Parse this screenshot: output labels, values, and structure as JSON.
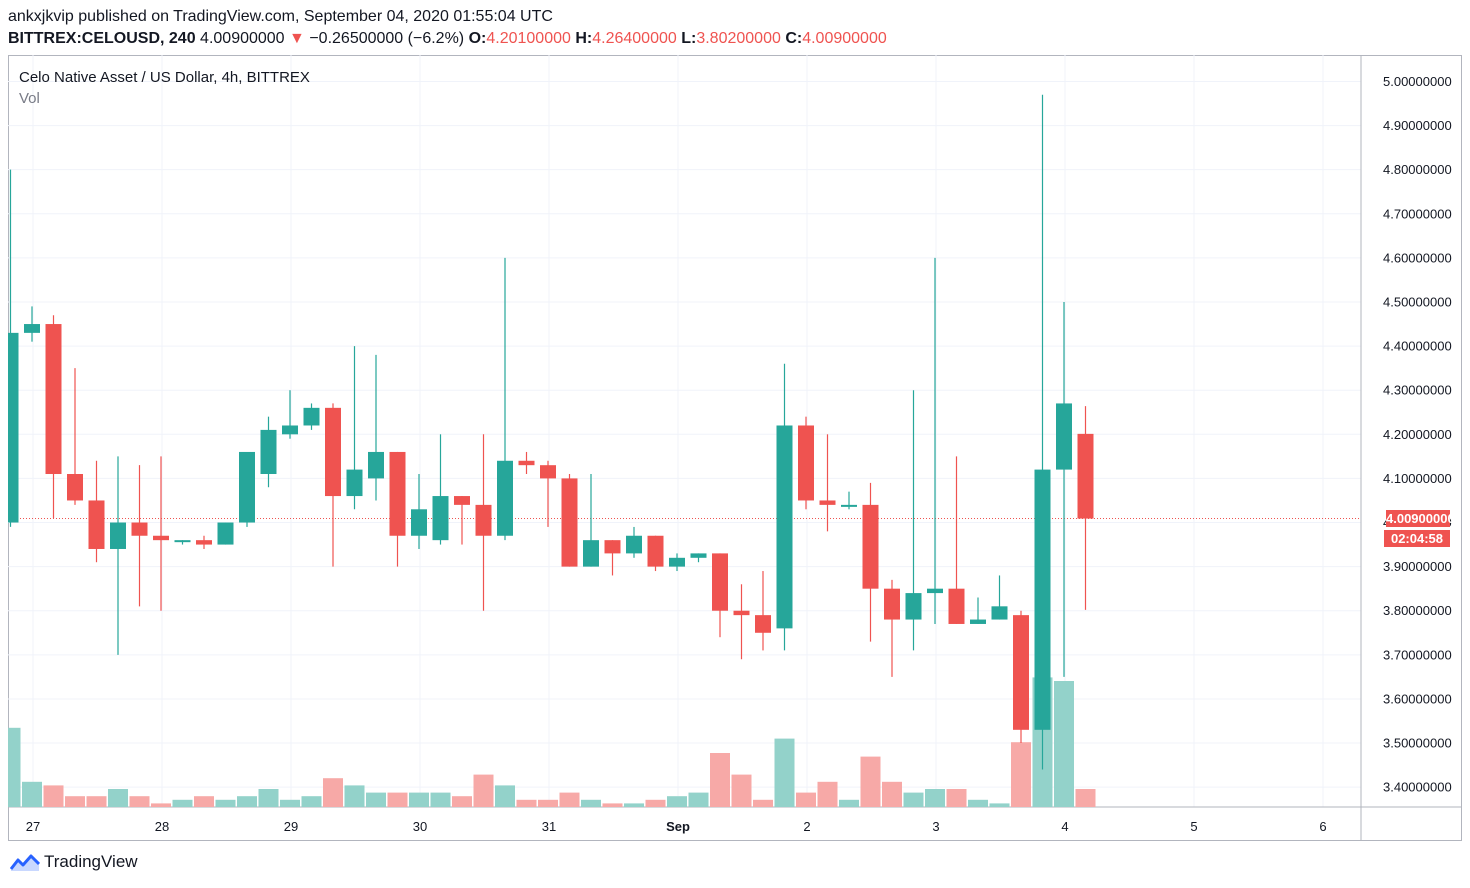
{
  "header": {
    "line1": "ankxjkvip published on TradingView.com, September 04, 2020 01:55:04 UTC",
    "symbol": "BITTREX:CELOUSD, 240",
    "last": "4.00900000",
    "change_arrow": "▼",
    "change": "−0.26500000 (−6.2%)",
    "o_label": "O:",
    "o": "4.20100000",
    "h_label": "H:",
    "h": "4.26400000",
    "l_label": "L:",
    "l": "3.80200000",
    "c_label": "C:",
    "c": "4.00900000"
  },
  "legend": {
    "title": "Celo Native Asset / US Dollar, 4h, BITTREX",
    "vol": "Vol"
  },
  "price_tag": {
    "price": "4.00900000",
    "countdown": "02:04:58"
  },
  "footer": {
    "brand": "TradingView",
    "logo_icon": "tradingview-logo-icon"
  },
  "colors": {
    "up": "#26a69a",
    "down": "#ef5350",
    "up_vol": "#93d2ca",
    "down_vol": "#f7a9a7",
    "grid": "#f0f3fa"
  },
  "chart_data": {
    "type": "candlestick",
    "y_ticks": [
      "3.40000000",
      "3.50000000",
      "3.60000000",
      "3.70000000",
      "3.80000000",
      "3.90000000",
      "4.00000000",
      "4.10000000",
      "4.20000000",
      "4.30000000",
      "4.40000000",
      "4.50000000",
      "4.60000000",
      "4.70000000",
      "4.80000000",
      "4.90000000",
      "5.00000000"
    ],
    "x_ticks": [
      "27",
      "28",
      "29",
      "30",
      "31",
      "Sep",
      "2",
      "3",
      "4",
      "5",
      "6"
    ],
    "x_tick_index": [
      1,
      7,
      13,
      19,
      25,
      31,
      37,
      43,
      49,
      55,
      61
    ],
    "ylim": [
      3.355,
      5.06
    ],
    "ohlc": [
      [
        4.0,
        4.8,
        3.99,
        4.43
      ],
      [
        4.43,
        4.49,
        4.41,
        4.45
      ],
      [
        4.45,
        4.47,
        4.01,
        4.11
      ],
      [
        4.11,
        4.35,
        4.04,
        4.05
      ],
      [
        4.05,
        4.14,
        3.91,
        3.94
      ],
      [
        3.94,
        4.15,
        3.7,
        4.0
      ],
      [
        4.0,
        4.13,
        3.81,
        3.97
      ],
      [
        3.97,
        4.15,
        3.8,
        3.96
      ],
      [
        3.96,
        3.96,
        3.95,
        3.96
      ],
      [
        3.96,
        3.97,
        3.94,
        3.95
      ],
      [
        3.95,
        4.0,
        3.95,
        4.0
      ],
      [
        4.0,
        4.15,
        3.99,
        4.16
      ],
      [
        4.11,
        4.24,
        4.08,
        4.21
      ],
      [
        4.2,
        4.3,
        4.19,
        4.22
      ],
      [
        4.22,
        4.27,
        4.21,
        4.26
      ],
      [
        4.26,
        4.27,
        3.9,
        4.06
      ],
      [
        4.06,
        4.4,
        4.03,
        4.12
      ],
      [
        4.1,
        4.38,
        4.05,
        4.16
      ],
      [
        4.16,
        4.16,
        3.9,
        3.97
      ],
      [
        3.97,
        4.11,
        3.94,
        4.03
      ],
      [
        3.96,
        4.2,
        3.95,
        4.06
      ],
      [
        4.06,
        4.06,
        3.95,
        4.04
      ],
      [
        4.04,
        4.2,
        3.8,
        3.97
      ],
      [
        3.97,
        4.6,
        3.96,
        4.14
      ],
      [
        4.14,
        4.16,
        4.11,
        4.13
      ],
      [
        4.13,
        4.14,
        3.99,
        4.1
      ],
      [
        4.1,
        4.11,
        3.9,
        3.9
      ],
      [
        3.9,
        4.11,
        3.9,
        3.96
      ],
      [
        3.96,
        3.96,
        3.88,
        3.93
      ],
      [
        3.93,
        3.99,
        3.92,
        3.97
      ],
      [
        3.97,
        3.97,
        3.89,
        3.9
      ],
      [
        3.9,
        3.93,
        3.89,
        3.92
      ],
      [
        3.92,
        3.93,
        3.91,
        3.93
      ],
      [
        3.93,
        3.93,
        3.74,
        3.8
      ],
      [
        3.8,
        3.86,
        3.69,
        3.79
      ],
      [
        3.79,
        3.89,
        3.71,
        3.75
      ],
      [
        3.76,
        4.36,
        3.71,
        4.22
      ],
      [
        4.22,
        4.24,
        4.03,
        4.05
      ],
      [
        4.05,
        4.2,
        3.98,
        4.04
      ],
      [
        4.04,
        4.07,
        4.03,
        4.04
      ],
      [
        4.04,
        4.09,
        3.73,
        3.85
      ],
      [
        3.85,
        3.87,
        3.65,
        3.78
      ],
      [
        3.78,
        4.3,
        3.71,
        3.84
      ],
      [
        3.84,
        4.6,
        3.77,
        3.85
      ],
      [
        3.85,
        4.15,
        3.77,
        3.77
      ],
      [
        3.77,
        3.83,
        3.77,
        3.78
      ],
      [
        3.78,
        3.88,
        3.78,
        3.81
      ],
      [
        3.79,
        3.8,
        3.5,
        3.53
      ],
      [
        3.53,
        4.97,
        3.44,
        4.12
      ],
      [
        4.12,
        4.5,
        3.65,
        4.27
      ],
      [
        4.201,
        4.264,
        3.802,
        4.009
      ]
    ],
    "volume_rel": [
      0.22,
      0.07,
      0.06,
      0.03,
      0.03,
      0.05,
      0.03,
      0.01,
      0.02,
      0.03,
      0.02,
      0.03,
      0.05,
      0.02,
      0.03,
      0.08,
      0.06,
      0.04,
      0.04,
      0.04,
      0.04,
      0.03,
      0.09,
      0.06,
      0.02,
      0.02,
      0.04,
      0.02,
      0.01,
      0.01,
      0.02,
      0.03,
      0.04,
      0.15,
      0.09,
      0.02,
      0.19,
      0.04,
      0.07,
      0.02,
      0.14,
      0.07,
      0.04,
      0.05,
      0.05,
      0.02,
      0.01,
      0.18,
      0.36,
      0.35,
      0.05
    ]
  }
}
